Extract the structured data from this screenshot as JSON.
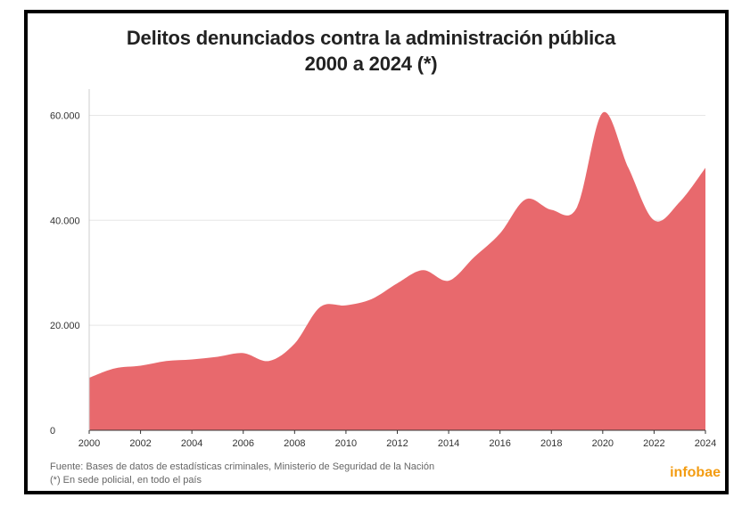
{
  "chart_data": {
    "type": "area",
    "title": "Delitos denunciados contra la administración pública",
    "subtitle": "2000 a 2024 (*)",
    "x": [
      2000,
      2001,
      2002,
      2003,
      2004,
      2005,
      2006,
      2007,
      2008,
      2009,
      2010,
      2011,
      2012,
      2013,
      2014,
      2015,
      2016,
      2017,
      2018,
      2019,
      2020,
      2021,
      2022,
      2023,
      2024
    ],
    "series": [
      {
        "values": [
          10000,
          11800,
          12300,
          13200,
          13500,
          14000,
          14700,
          13200,
          16500,
          23500,
          23800,
          25000,
          28000,
          30500,
          28500,
          33000,
          37500,
          44000,
          42000,
          42500,
          60500,
          50000,
          40000,
          43500,
          50000
        ]
      }
    ],
    "xticks": [
      "2000",
      "2002",
      "2004",
      "2006",
      "2008",
      "2010",
      "2012",
      "2014",
      "2016",
      "2018",
      "2020",
      "2022",
      "2024"
    ],
    "yticks": [
      "0",
      "20.000",
      "40.000",
      "60.000"
    ],
    "ytick_values": [
      0,
      20000,
      40000,
      60000
    ],
    "xlim": [
      2000,
      2024
    ],
    "ylim": [
      0,
      65000
    ],
    "grid": true,
    "color": "#e8696d"
  },
  "footer": {
    "source": "Fuente: Bases de datos de estadísticas criminales, Ministerio de Seguridad de la Nación",
    "note": "(*) En sede policial, en todo el país",
    "brand": "infobae"
  }
}
